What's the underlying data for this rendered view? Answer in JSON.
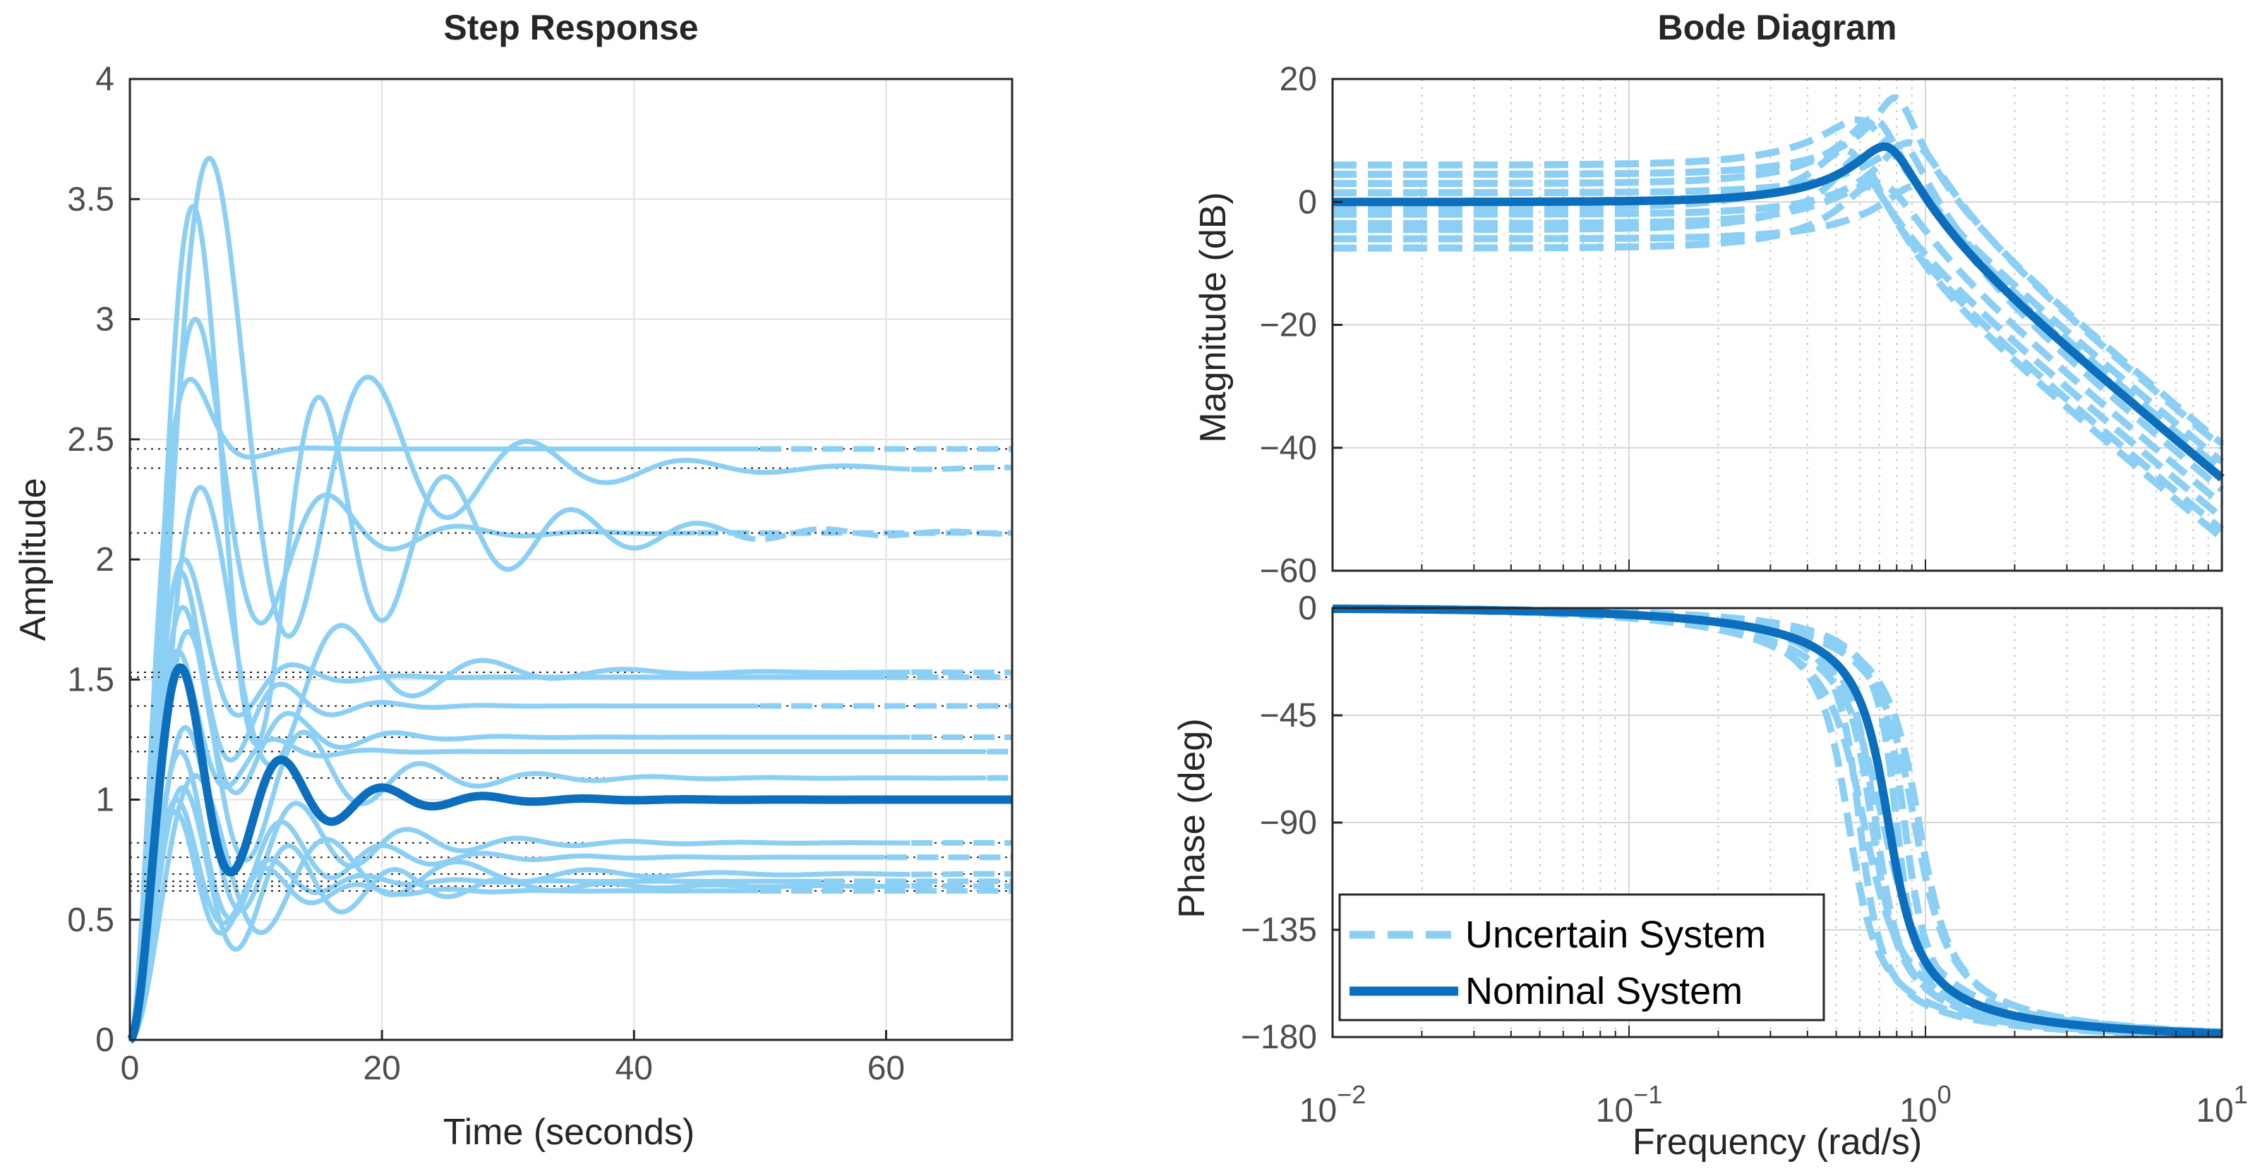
{
  "chart_data": [
    {
      "type": "line",
      "title": "Step Response",
      "xlabel": "Time (seconds)",
      "ylabel": "Amplitude",
      "xlim": [
        0,
        70
      ],
      "ylim": [
        0,
        4
      ],
      "xticks": [
        0,
        20,
        40,
        60
      ],
      "xtick_labels": [
        "0",
        "20",
        "40",
        "60"
      ],
      "yticks": [
        0,
        0.5,
        1,
        1.5,
        2,
        2.5,
        3,
        3.5,
        4
      ],
      "ytick_labels": [
        "0",
        "0.5",
        "1",
        "1.5",
        "2",
        "2.5",
        "3",
        "3.5",
        "4"
      ],
      "grid": true,
      "nominal": {
        "name": "Nominal System",
        "final": 1.0,
        "peak": 1.55,
        "peak_time": 4.0,
        "settle_time": 45
      },
      "uncertain": [
        {
          "final": 2.46,
          "peak": 2.75,
          "peak_time": 4.8,
          "settle_time": 50
        },
        {
          "final": 2.38,
          "peak": 3.67,
          "peak_time": 6.3,
          "settle_time": 62
        },
        {
          "final": 2.11,
          "peak": 3.0,
          "peak_time": 5.2,
          "settle_time": 45
        },
        {
          "final": 2.11,
          "peak": 3.47,
          "peak_time": 5.0,
          "settle_time": 48
        },
        {
          "final": 1.53,
          "peak": 2.3,
          "peak_time": 5.6,
          "settle_time": 62
        },
        {
          "final": 1.51,
          "peak": 2.0,
          "peak_time": 4.3,
          "settle_time": 60
        },
        {
          "final": 1.39,
          "peak": 1.95,
          "peak_time": 4.0,
          "settle_time": 50
        },
        {
          "final": 1.26,
          "peak": 1.8,
          "peak_time": 4.2,
          "settle_time": 62
        },
        {
          "final": 1.2,
          "peak": 1.62,
          "peak_time": 3.8,
          "settle_time": 68
        },
        {
          "final": 1.09,
          "peak": 1.7,
          "peak_time": 4.6,
          "settle_time": 68
        },
        {
          "final": 0.82,
          "peak": 1.3,
          "peak_time": 4.4,
          "settle_time": 62
        },
        {
          "final": 0.76,
          "peak": 1.2,
          "peak_time": 4.0,
          "settle_time": 60
        },
        {
          "final": 0.69,
          "peak": 1.1,
          "peak_time": 5.2,
          "settle_time": 62
        },
        {
          "final": 0.66,
          "peak": 1.0,
          "peak_time": 3.7,
          "settle_time": 55
        },
        {
          "final": 0.64,
          "peak": 1.05,
          "peak_time": 4.2,
          "settle_time": 62
        },
        {
          "final": 0.62,
          "peak": 0.95,
          "peak_time": 3.6,
          "settle_time": 50
        }
      ]
    },
    {
      "type": "line",
      "title": "Bode Diagram",
      "xlabel": "Frequency  (rad/s)",
      "xscale": "log",
      "xlim": [
        0.01,
        10
      ],
      "xtick_labels": [
        {
          "base": "10",
          "exp": "−2"
        },
        {
          "base": "10",
          "exp": "−1"
        },
        {
          "base": "10",
          "exp": "0"
        },
        {
          "base": "10",
          "exp": "1"
        }
      ],
      "magnitude": {
        "ylabel": "Magnitude (dB)",
        "ylim": [
          -60,
          20
        ],
        "yticks": [
          20,
          0,
          -20,
          -40,
          -60
        ],
        "ytick_labels": [
          "20",
          "0",
          "−20",
          "−40",
          "−60"
        ],
        "nominal": {
          "dc_gain_db": 0,
          "wn": 0.75,
          "zeta": 0.18,
          "end_value_db": -44
        }
      },
      "phase": {
        "ylabel": "Phase (deg)",
        "ylim": [
          -180,
          0
        ],
        "yticks": [
          0,
          -45,
          -90,
          -135,
          -180
        ],
        "ytick_labels": [
          "0",
          "−45",
          "−90",
          "−135",
          "−180"
        ]
      },
      "uncertain": [
        {
          "dc_gain_db": 6.0,
          "wn": 0.62,
          "zeta": 0.22
        },
        {
          "dc_gain_db": 4.5,
          "wn": 0.8,
          "zeta": 0.12
        },
        {
          "dc_gain_db": 3.0,
          "wn": 0.68,
          "zeta": 0.15
        },
        {
          "dc_gain_db": 1.5,
          "wn": 0.92,
          "zeta": 0.2
        },
        {
          "dc_gain_db": -1.0,
          "wn": 0.55,
          "zeta": 0.17
        },
        {
          "dc_gain_db": -2.0,
          "wn": 0.85,
          "zeta": 0.14
        },
        {
          "dc_gain_db": -3.5,
          "wn": 0.72,
          "zeta": 0.24
        },
        {
          "dc_gain_db": -4.5,
          "wn": 0.6,
          "zeta": 0.13
        },
        {
          "dc_gain_db": -6.0,
          "wn": 0.95,
          "zeta": 0.19
        },
        {
          "dc_gain_db": -7.5,
          "wn": 0.66,
          "zeta": 0.16
        }
      ],
      "legend": {
        "position": "bottom-left",
        "entries": [
          "Uncertain System",
          "Nominal System"
        ]
      }
    }
  ],
  "colors": {
    "uncertain": "#8ccff5",
    "nominal": "#0b6fbd",
    "grid": "#e0e0e0",
    "axis": "#262626",
    "text": "#262626"
  }
}
